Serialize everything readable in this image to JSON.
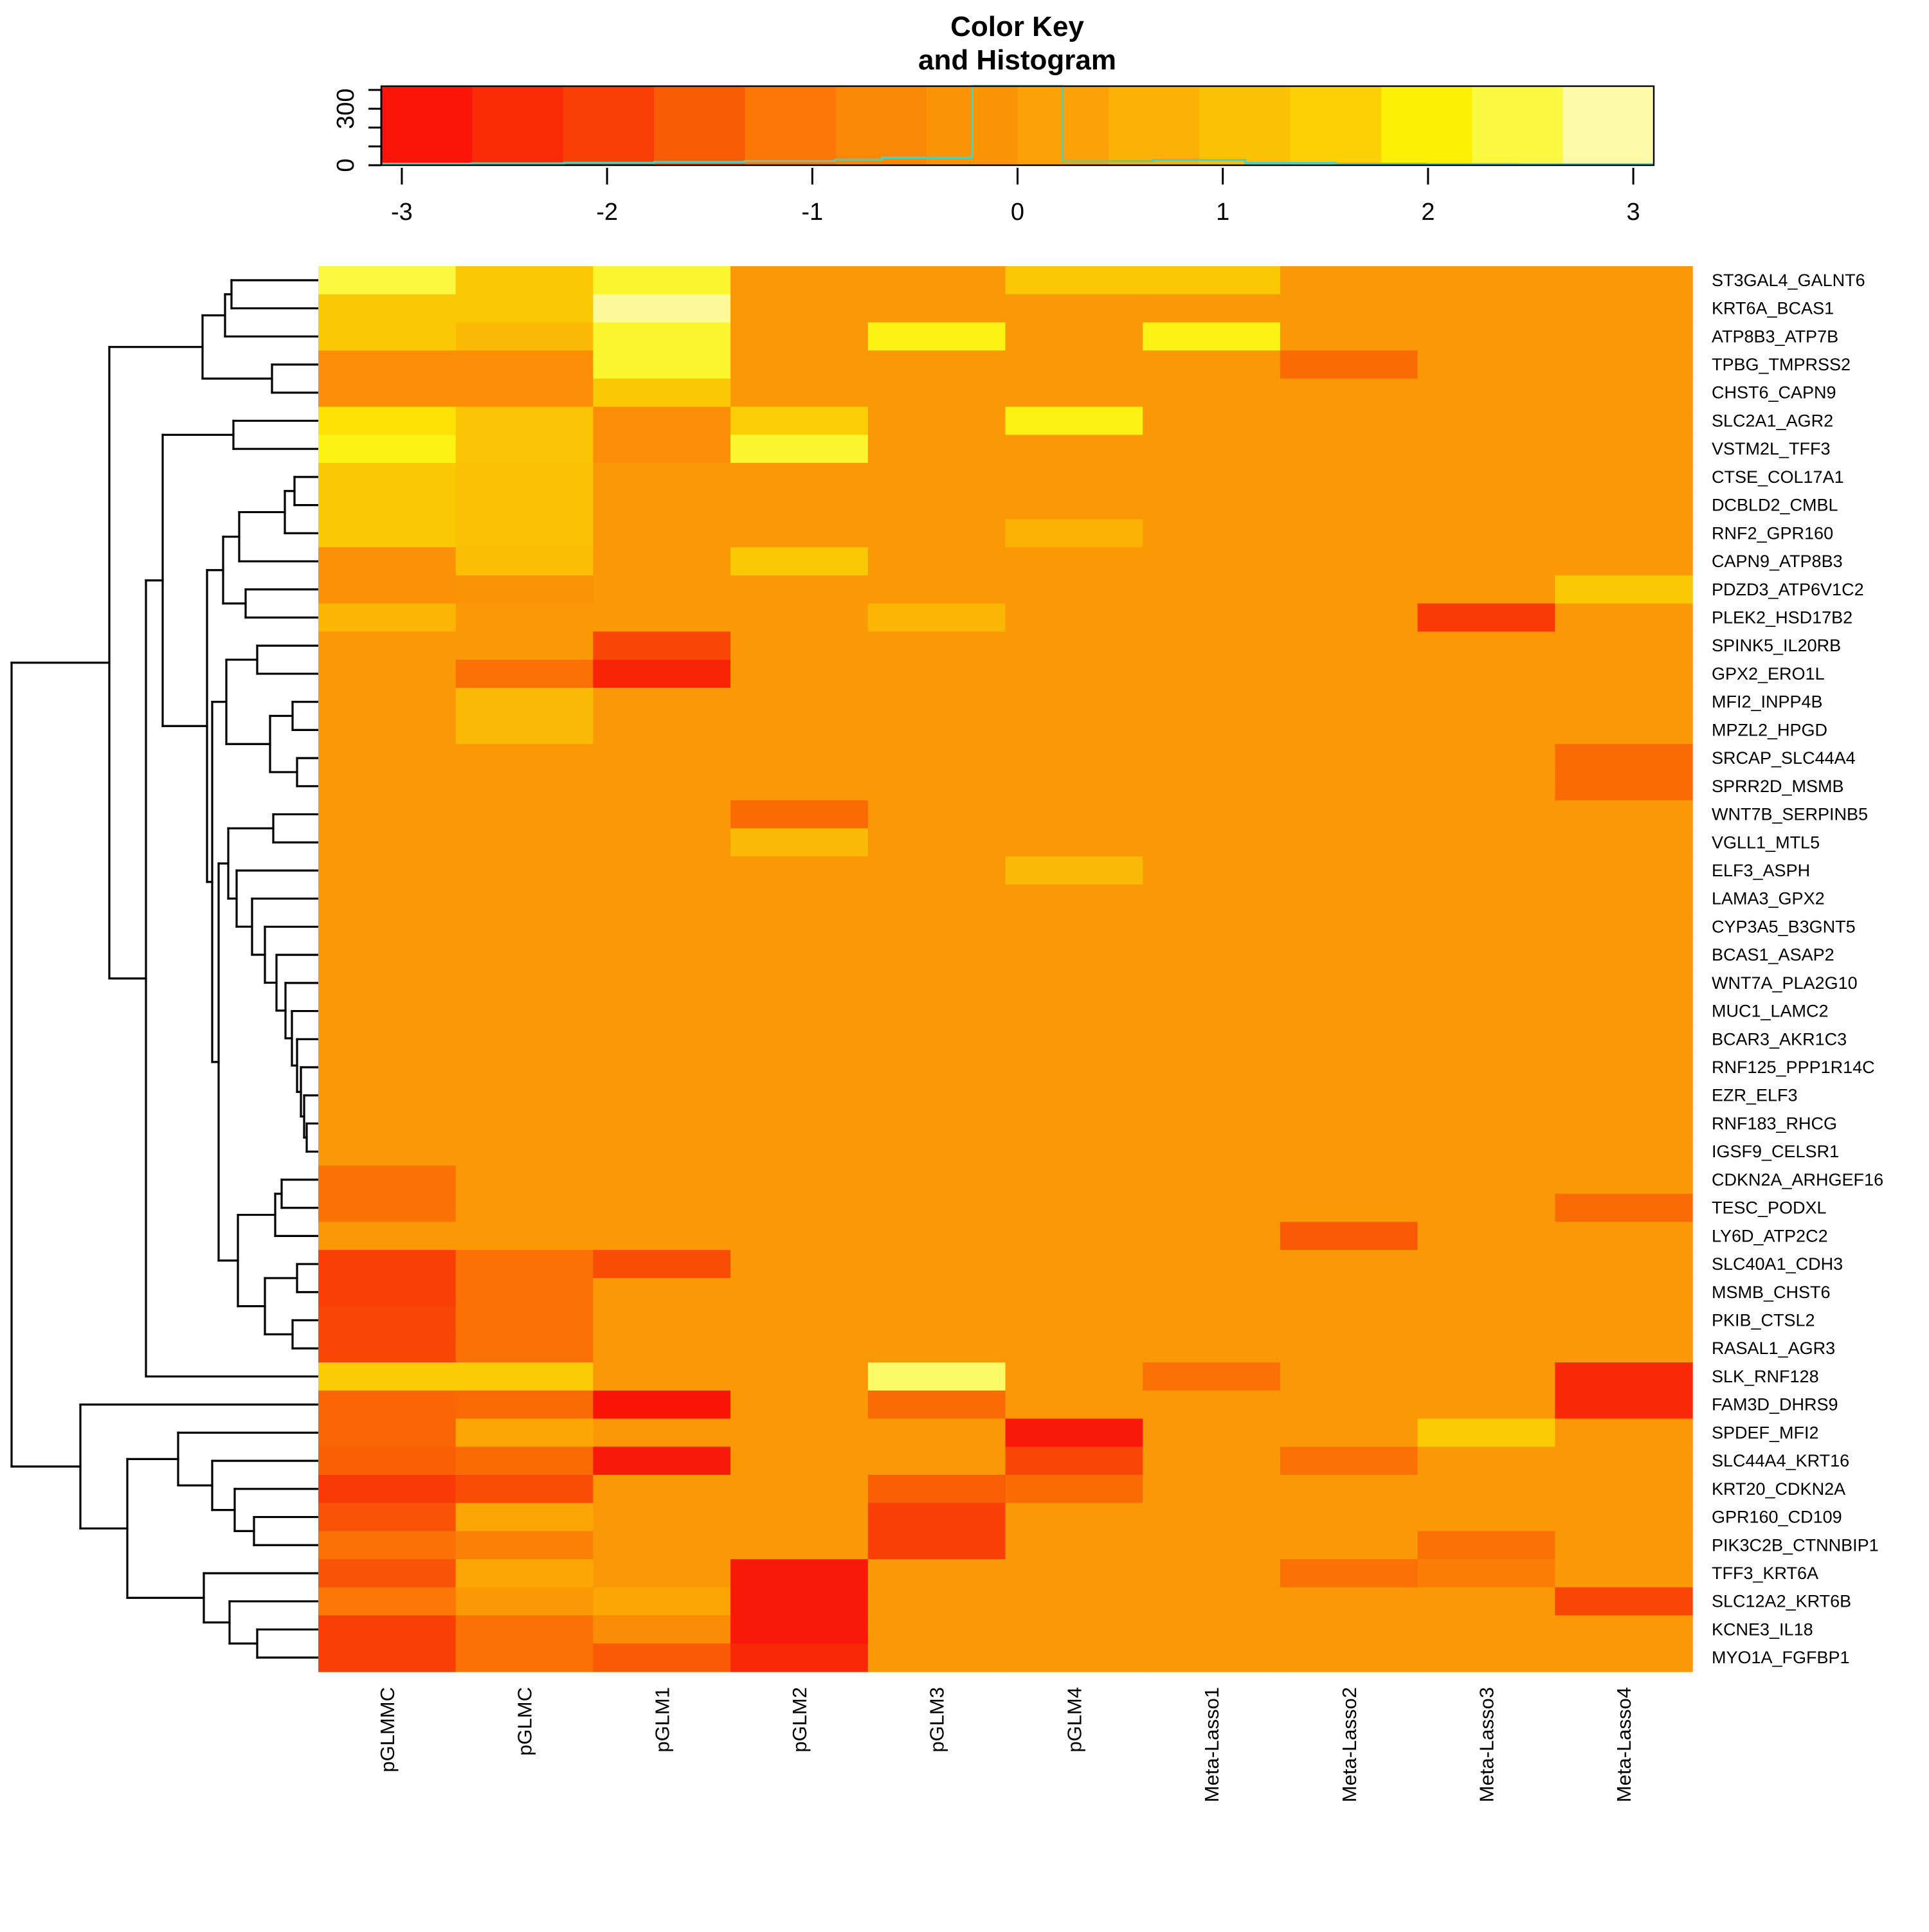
{
  "title": {
    "line1": "Color Key",
    "line2": "and Histogram"
  },
  "chart_data": {
    "type": "heatmap",
    "title": "Color Key and Histogram",
    "legend_position": "top",
    "grid": false,
    "columns": [
      "pGLMMC",
      "pGLMC",
      "pGLM1",
      "pGLM2",
      "pGLM3",
      "pGLM4",
      "Meta-Lasso1",
      "Meta-Lasso2",
      "Meta-Lasso3",
      "Meta-Lasso4"
    ],
    "rows": [
      "ST3GAL4_GALNT6",
      "KRT6A_BCAS1",
      "ATP8B3_ATP7B",
      "TPBG_TMPRSS2",
      "CHST6_CAPN9",
      "SLC2A1_AGR2",
      "VSTM2L_TFF3",
      "CTSE_COL17A1",
      "DCBLD2_CMBL",
      "RNF2_GPR160",
      "CAPN9_ATP8B3",
      "PDZD3_ATP6V1C2",
      "PLEK2_HSD17B2",
      "SPINK5_IL20RB",
      "GPX2_ERO1L",
      "MFI2_INPP4B",
      "MPZL2_HPGD",
      "SRCAP_SLC44A4",
      "SPRR2D_MSMB",
      "WNT7B_SERPINB5",
      "VGLL1_MTL5",
      "ELF3_ASPH",
      "LAMA3_GPX2",
      "CYP3A5_B3GNT5",
      "BCAS1_ASAP2",
      "WNT7A_PLA2G10",
      "MUC1_LAMC2",
      "BCAR3_AKR1C3",
      "RNF125_PPP1R14C",
      "EZR_ELF3",
      "RNF183_RHCG",
      "IGSF9_CELSR1",
      "CDKN2A_ARHGEF16",
      "TESC_PODXL",
      "LY6D_ATP2C2",
      "SLC40A1_CDH3",
      "MSMB_CHST6",
      "PKIB_CTSL2",
      "RASAL1_AGR3",
      "SLK_RNF128",
      "FAM3D_DHRS9",
      "SPDEF_MFI2",
      "SLC44A4_KRT16",
      "KRT20_CDKN2A",
      "GPR160_CD109",
      "PIK3C2B_CTNNBIP1",
      "TFF3_KRT6A",
      "SLC12A2_KRT6B",
      "KCNE3_IL18",
      "MYO1A_FGFBP1"
    ],
    "values": [
      [
        2.4,
        1.3,
        2.3,
        0,
        0,
        1.3,
        1.3,
        0,
        0,
        0
      ],
      [
        1.3,
        1.3,
        2.8,
        0,
        0,
        0,
        0,
        0,
        0,
        0
      ],
      [
        1.3,
        0.9,
        2.3,
        0,
        2.1,
        0,
        2.1,
        0,
        0,
        0
      ],
      [
        -0.4,
        -0.4,
        2.3,
        0,
        0,
        0,
        0,
        -1.3,
        0,
        0
      ],
      [
        -0.4,
        -0.4,
        1.3,
        0,
        0,
        0,
        0,
        0,
        0,
        0
      ],
      [
        1.8,
        1.2,
        -0.4,
        1.5,
        0,
        2.1,
        0,
        0,
        0,
        0
      ],
      [
        2.1,
        1.2,
        -0.4,
        2.3,
        0,
        0,
        0,
        0,
        0,
        0
      ],
      [
        1.3,
        1.1,
        0,
        0,
        0,
        0,
        0,
        0,
        0,
        0
      ],
      [
        1.3,
        1.1,
        0,
        0,
        0,
        0,
        0,
        0,
        0,
        0
      ],
      [
        1.3,
        1.1,
        0,
        0,
        0,
        0.7,
        0,
        0,
        0,
        0
      ],
      [
        -0.3,
        1.0,
        0,
        1.3,
        0,
        0,
        0,
        0,
        0,
        0
      ],
      [
        -0.3,
        -0.2,
        0,
        0,
        0,
        0,
        0,
        0,
        0,
        1.3
      ],
      [
        0.8,
        0,
        0,
        0,
        0.8,
        0,
        0,
        0,
        -2.1,
        0
      ],
      [
        0,
        0,
        -1.9,
        0,
        0,
        0,
        0,
        0,
        0,
        0
      ],
      [
        0,
        -1.2,
        -2.6,
        0,
        0,
        0,
        0,
        0,
        0,
        0
      ],
      [
        0,
        0.9,
        0,
        0,
        0,
        0,
        0,
        0,
        0,
        0
      ],
      [
        0,
        0.9,
        0,
        0,
        0,
        0,
        0,
        0,
        0,
        0
      ],
      [
        0,
        0,
        0,
        0,
        0,
        0,
        0,
        0,
        0,
        -1.3
      ],
      [
        0,
        0,
        0,
        0,
        0,
        0,
        0,
        0,
        0,
        -1.3
      ],
      [
        0,
        0,
        0,
        -1.3,
        0,
        0,
        0,
        0,
        0,
        0
      ],
      [
        0,
        0,
        0,
        0.9,
        0,
        0,
        0,
        0,
        0,
        0
      ],
      [
        0,
        0,
        0,
        0,
        0,
        0.9,
        0,
        0,
        0,
        0
      ],
      [
        0,
        0,
        0,
        0,
        0,
        0,
        0,
        0,
        0,
        0
      ],
      [
        0,
        0,
        0,
        0,
        0,
        0,
        0,
        0,
        0,
        0
      ],
      [
        0,
        0,
        0,
        0,
        0,
        0,
        0,
        0,
        0,
        0
      ],
      [
        0,
        0,
        0,
        0,
        0,
        0,
        0,
        0,
        0,
        0
      ],
      [
        0,
        0,
        0,
        0,
        0,
        0,
        0,
        0,
        0,
        0
      ],
      [
        0,
        0,
        0,
        0,
        0,
        0,
        0,
        0,
        0,
        0
      ],
      [
        0,
        0,
        0,
        0,
        0,
        0,
        0,
        0,
        0,
        0
      ],
      [
        0,
        0,
        0,
        0,
        0,
        0,
        0,
        0,
        0,
        0
      ],
      [
        0,
        0,
        0,
        0,
        0,
        0,
        0,
        0,
        0,
        0
      ],
      [
        0,
        0,
        0,
        0,
        0,
        0,
        0,
        0,
        0,
        0
      ],
      [
        -1.2,
        0,
        0,
        0,
        0,
        0,
        0,
        0,
        0,
        0
      ],
      [
        -1.2,
        0,
        0,
        0,
        0,
        0,
        0,
        0,
        0,
        -1.3
      ],
      [
        0,
        0,
        0,
        0,
        0,
        0,
        0,
        -1.6,
        0,
        0
      ],
      [
        -2.0,
        -1.2,
        -1.8,
        0,
        0,
        0,
        0,
        0,
        0,
        0
      ],
      [
        -2.0,
        -1.2,
        0,
        0,
        0,
        0,
        0,
        0,
        0,
        0
      ],
      [
        -1.9,
        -1.2,
        0,
        0,
        0,
        0,
        0,
        0,
        0,
        0
      ],
      [
        -1.9,
        -1.2,
        0,
        0,
        0,
        0,
        0,
        0,
        0,
        0
      ],
      [
        1.4,
        1.4,
        0,
        0,
        2.6,
        0,
        -1.2,
        0,
        0,
        -2.5
      ],
      [
        -1.4,
        -1.3,
        -2.9,
        0,
        -1.3,
        0,
        0,
        0,
        0,
        -2.5
      ],
      [
        -1.4,
        0.4,
        0,
        0,
        0,
        -2.8,
        0,
        0,
        1.4,
        0
      ],
      [
        -1.5,
        -1.3,
        -2.8,
        0,
        0,
        -1.9,
        0,
        -1.2,
        0,
        0
      ],
      [
        -2.1,
        -1.8,
        0,
        0,
        -1.5,
        -1.3,
        0,
        0,
        0,
        0
      ],
      [
        -1.7,
        0.4,
        0,
        0,
        -2.0,
        0,
        0,
        0,
        0,
        0
      ],
      [
        -1.2,
        -0.9,
        0,
        0,
        -2.0,
        0,
        0,
        0,
        -1.2,
        0
      ],
      [
        -1.7,
        0.4,
        0,
        -2.8,
        0,
        0,
        0,
        -1.2,
        -1.0,
        0
      ],
      [
        -1.1,
        0,
        0.4,
        -2.8,
        0,
        0,
        0,
        0,
        0,
        -1.9
      ],
      [
        -2.0,
        -1.2,
        -0.5,
        -2.8,
        0,
        0,
        0,
        0,
        0,
        0
      ],
      [
        -2.0,
        -1.2,
        -1.6,
        -2.5,
        0,
        0,
        0,
        0,
        0,
        0
      ]
    ],
    "color_scale": {
      "domain": [
        -3.1,
        3.1
      ],
      "stops": [
        [
          -3.1,
          "#FA0A0A"
        ],
        [
          -2.6,
          "#F92306"
        ],
        [
          -2.0,
          "#F93F06"
        ],
        [
          -1.5,
          "#FA5F06"
        ],
        [
          -1.0,
          "#FB7D06"
        ],
        [
          -0.5,
          "#FB8C06"
        ],
        [
          0,
          "#FB9806"
        ],
        [
          0.5,
          "#FBAA05"
        ],
        [
          1.0,
          "#FBBE05"
        ],
        [
          1.5,
          "#FBCE05"
        ],
        [
          2.0,
          "#FCF005"
        ],
        [
          2.5,
          "#FCFA4B"
        ],
        [
          2.8,
          "#FDFA9B"
        ],
        [
          3.1,
          "#FDFCCF"
        ]
      ]
    },
    "color_key": {
      "n_blocks": 14,
      "x_ticks": [
        -3,
        -2,
        -1,
        0,
        1,
        2,
        3
      ],
      "y_ticks": [
        0,
        100,
        200,
        300,
        400
      ],
      "y_tick_labels": {
        "0": "0",
        "300": "300"
      },
      "y_max": 420,
      "histogram_color": "#4ED1BC",
      "histogram_bins": [
        [
          -3.1,
          -2.66,
          8
        ],
        [
          -2.66,
          -2.21,
          10
        ],
        [
          -2.21,
          -1.77,
          13
        ],
        [
          -1.77,
          -1.33,
          17
        ],
        [
          -1.33,
          -0.89,
          22
        ],
        [
          -0.89,
          -0.66,
          30
        ],
        [
          -0.66,
          -0.22,
          40
        ],
        [
          -0.22,
          0.22,
          420
        ],
        [
          0.22,
          0.66,
          22
        ],
        [
          0.66,
          1.11,
          28
        ],
        [
          1.11,
          1.55,
          12
        ],
        [
          1.55,
          1.99,
          8
        ],
        [
          1.99,
          2.44,
          6
        ],
        [
          2.44,
          3.1,
          5
        ]
      ]
    },
    "row_dendrogram": [
      18,
      [
        170,
        [
          315,
          [
            350,
            [
              360,
              1,
              2
            ],
            3
          ],
          [
            423,
            4,
            5
          ]
        ],
        [
          227,
          [
            253,
            [
              363,
              6,
              7
            ],
            [
              322,
              [
                347,
                [
                  372,
                  [
                    443,
                    [
                      458,
                      8,
                      9
                    ],
                    10
                  ],
                  11
                ],
                [
                  382,
                  12,
                  13
                ]
              ],
              [
                330,
                [
                  352,
                  [
                    400,
                    14,
                    15
                  ],
                  [
                    420,
                    [
                      455,
                      16,
                      17
                    ],
                    [
                      462,
                      18,
                      19
                    ]
                  ]
                ],
                [
                  340,
                  [
                    355,
                    [
                      425,
                      20,
                      21
                    ],
                    [
                      368,
                      22,
                      [
                        392,
                        23,
                        [
                          412,
                          24,
                          [
                            430,
                            25,
                            [
                              444,
                              26,
                              [
                                454,
                                27,
                                [
                                  462,
                                  28,
                                  [
                                    468,
                                    29,
                                    [
                                      473,
                                      30,
                                      [
                                        477,
                                        31,
                                        32
                                      ]
                                    ]
                                  ]
                                ]
                              ]
                            ]
                          ]
                        ]
                      ]
                    ]
                  ],
                  [
                    370,
                    [
                      428,
                      [
                        438,
                        33,
                        34
                      ],
                      35
                    ],
                    [
                      412,
                      [
                        462,
                        36,
                        37
                      ],
                      [
                        455,
                        38,
                        39
                      ]
                    ]
                  ]
                ]
              ]
            ]
          ],
          40
        ]
      ],
      [
        125,
        41,
        [
          198,
          [
            277,
            42,
            [
              330,
              43,
              [
                365,
                44,
                [
                  395,
                  45,
                  46
                ]
              ]
            ]
          ],
          [
            317,
            47,
            [
              357,
              48,
              [
                400,
                49,
                50
              ]
            ]
          ]
        ]
      ]
    ]
  }
}
